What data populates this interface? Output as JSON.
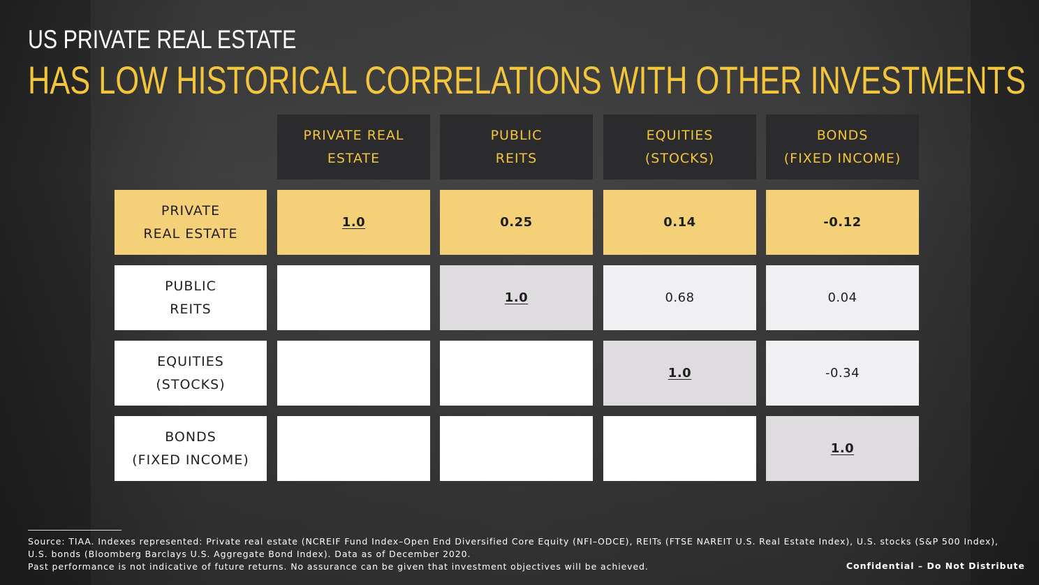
{
  "slide": {
    "subtitle": "US PRIVATE REAL ESTATE",
    "title": "HAS LOW HISTORICAL CORRELATIONS WITH OTHER INVESTMENTS"
  },
  "table": {
    "columns": [
      {
        "line1": "PRIVATE REAL",
        "line2": "ESTATE"
      },
      {
        "line1": "PUBLIC",
        "line2": "REITS"
      },
      {
        "line1": "EQUITIES",
        "line2": "(STOCKS)"
      },
      {
        "line1": "BONDS",
        "line2": "(FIXED INCOME)"
      }
    ],
    "rows": [
      {
        "line1": "PRIVATE",
        "line2": "REAL ESTATE",
        "values": [
          "1.0",
          "0.25",
          "0.14",
          "-0.12"
        ]
      },
      {
        "line1": "PUBLIC",
        "line2": "REITS",
        "values": [
          "",
          "1.0",
          "0.68",
          "0.04"
        ]
      },
      {
        "line1": "EQUITIES",
        "line2": "(STOCKS)",
        "values": [
          "",
          "",
          "1.0",
          "-0.34"
        ]
      },
      {
        "line1": "BONDS",
        "line2": "(FIXED INCOME)",
        "values": [
          "",
          "",
          "",
          "1.0"
        ]
      }
    ]
  },
  "footer": {
    "source_line1": "Source: TIAA. Indexes represented: Private real estate (NCREIF Fund Index–Open End Diversified Core Equity (NFI–ODCE), REITs (FTSE NAREIT U.S. Real Estate Index), U.S. stocks (S&P 500 Index), U.S. bonds (Bloomberg Barclays U.S. Aggregate Bond Index). Data as of December 2020.",
    "source_line2": "Past performance is not indicative of future returns. No assurance can be given that investment objectives will be achieved.",
    "confidential": "Confidential – Do Not Distribute"
  },
  "colors": {
    "accent": "#f2c53d",
    "highlight_row": "#f4d179",
    "header_bg": "#2b2b2d"
  }
}
